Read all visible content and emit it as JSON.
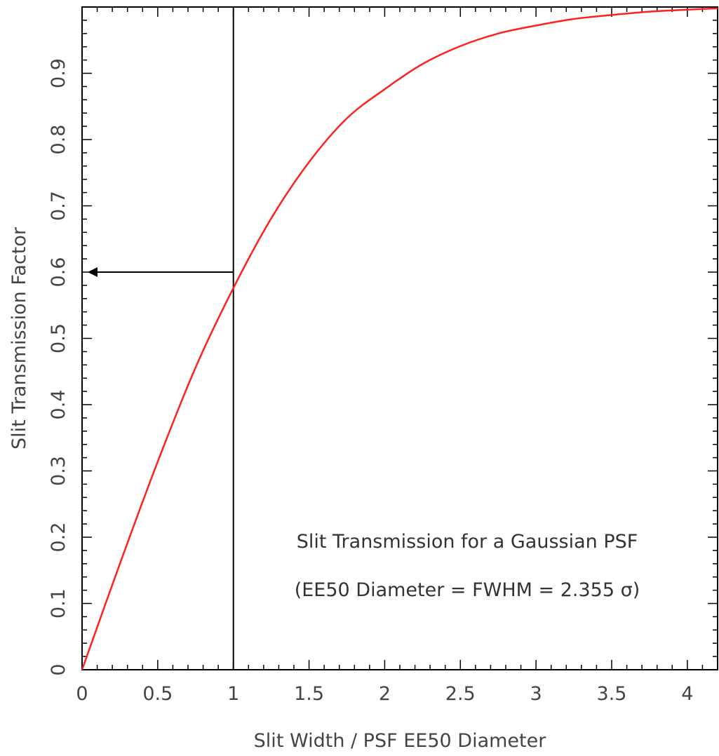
{
  "chart_data": {
    "type": "line",
    "title": "",
    "xlabel": "Slit Width / PSF EE50 Diameter",
    "ylabel": "Slit Transmission Factor",
    "xlim": [
      0,
      4.2
    ],
    "ylim": [
      0,
      1.0
    ],
    "x_ticks": [
      0,
      0.5,
      1,
      1.5,
      2,
      2.5,
      3,
      3.5,
      4
    ],
    "x_tick_labels": [
      "0",
      "0.5",
      "1",
      "1.5",
      "2",
      "2.5",
      "3",
      "3.5",
      "4"
    ],
    "y_ticks": [
      0,
      0.1,
      0.2,
      0.3,
      0.4,
      0.5,
      0.6,
      0.7,
      0.8,
      0.9
    ],
    "y_tick_labels": [
      "0",
      "0.1",
      "0.2",
      "0.3",
      "0.4",
      "0.5",
      "0.6",
      "0.7",
      "0.8",
      "0.9"
    ],
    "grid": false,
    "series": [
      {
        "color": "#ff2020",
        "x": [
          0,
          0.25,
          0.5,
          0.75,
          1.0,
          1.25,
          1.5,
          1.75,
          2.0,
          2.25,
          2.5,
          2.75,
          3.0,
          3.25,
          3.5,
          3.75,
          4.0,
          4.2
        ],
        "values": [
          0.0,
          0.16,
          0.314,
          0.456,
          0.576,
          0.681,
          0.766,
          0.832,
          0.876,
          0.914,
          0.941,
          0.96,
          0.972,
          0.982,
          0.988,
          0.993,
          0.996,
          0.998
        ]
      }
    ],
    "reference_line": {
      "x": 1,
      "color": "#000000"
    },
    "arrow": {
      "from": [
        1,
        0.6
      ],
      "to": [
        0,
        0.6
      ],
      "color": "#000000"
    },
    "annotations": [
      "Slit Transmission for a Gaussian PSF",
      "(EE50 Diameter = FWHM = 2.355 σ)"
    ]
  }
}
